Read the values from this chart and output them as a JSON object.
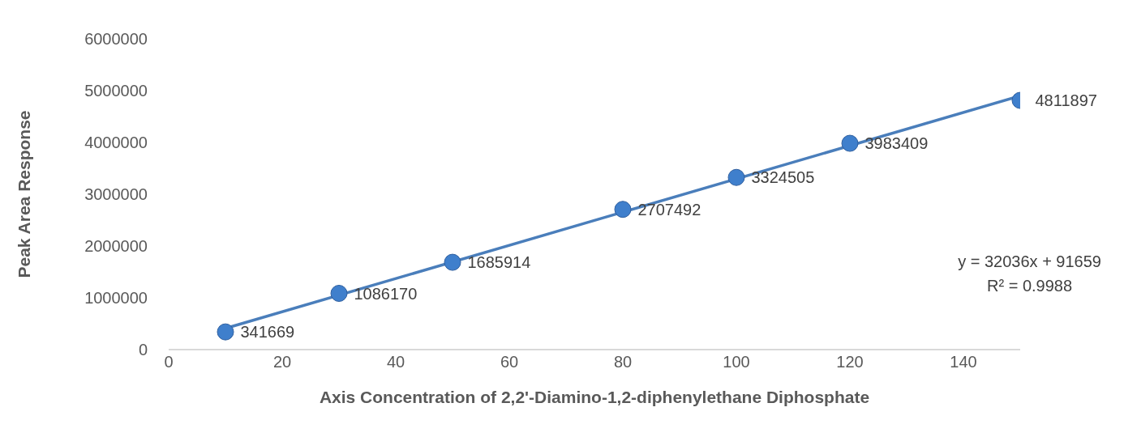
{
  "chart_data": {
    "type": "scatter",
    "xlabel": "Axis Concentration of 2,2'-Diamino-1,2-diphenylethane Diphosphate",
    "ylabel": "Peak Area Response",
    "xlim": [
      0,
      150
    ],
    "xticks": [
      0,
      20,
      40,
      60,
      80,
      100,
      120,
      140
    ],
    "ylim": [
      0,
      6000000
    ],
    "yticks": [
      0,
      1000000,
      2000000,
      3000000,
      4000000,
      5000000,
      6000000
    ],
    "grid": false,
    "legend": false,
    "series": [
      {
        "color": "#3f7fcc",
        "marker": "circle",
        "x": [
          10,
          30,
          50,
          80,
          100,
          120,
          150
        ],
        "values": [
          341669,
          1086170,
          1685914,
          2707492,
          3324505,
          3983409,
          4811897
        ],
        "value_labels": [
          "341669",
          "1086170",
          "1685914",
          "2707492",
          "3324505",
          "3983409",
          "4811897"
        ]
      },
      {
        "type": "line",
        "color": "#4a7ebb",
        "line_style": "solid",
        "marker": "none",
        "x": [
          10,
          150
        ],
        "values": [
          410000,
          4900000
        ]
      }
    ],
    "annotations": [
      "y = 32036x + 91659",
      "R² = 0.9988"
    ]
  }
}
